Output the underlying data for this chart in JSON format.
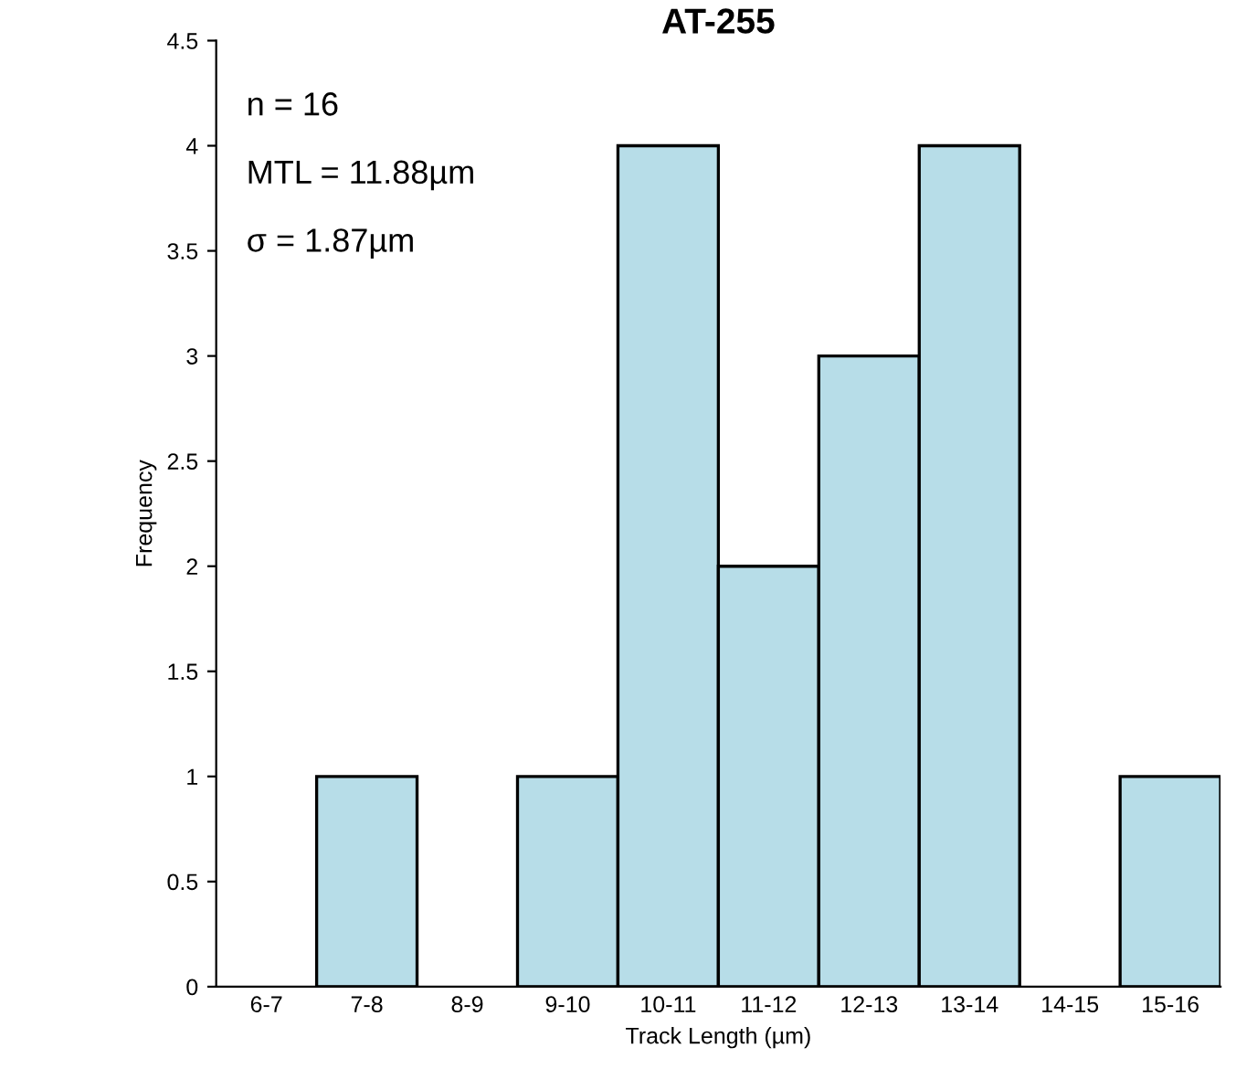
{
  "chart_data": {
    "type": "bar",
    "title": "AT-255",
    "xlabel": "Track Length (µm)",
    "ylabel": "Frequency",
    "categories": [
      "6-7",
      "7-8",
      "8-9",
      "9-10",
      "10-11",
      "11-12",
      "12-13",
      "13-14",
      "14-15",
      "15-16"
    ],
    "values": [
      0,
      1,
      0,
      1,
      4,
      2,
      3,
      4,
      0,
      1
    ],
    "color": "#b7dde8",
    "ylim": [
      0,
      4.5
    ],
    "yticks": [
      0,
      0.5,
      1,
      1.5,
      2,
      2.5,
      3,
      3.5,
      4,
      4.5
    ],
    "grid": false,
    "legend": false,
    "annotations": [
      "n = 16",
      "MTL = 11.88µm",
      "σ = 1.87µm"
    ]
  }
}
